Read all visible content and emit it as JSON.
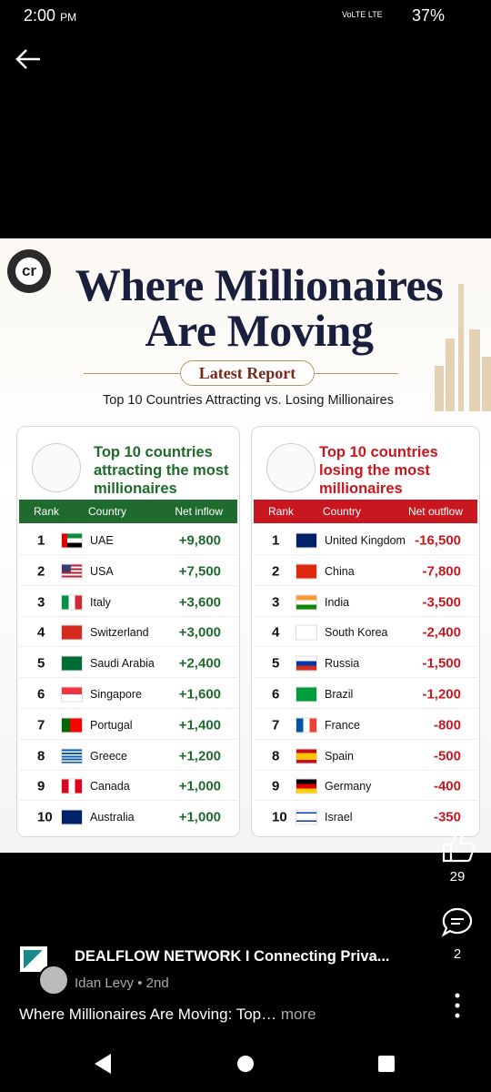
{
  "status_bar": {
    "time": "2:00",
    "period": "PM",
    "network": "VoLTE LTE",
    "battery": "37%"
  },
  "infographic": {
    "logo": "cr",
    "title": [
      "Where Millionaires",
      "Are Moving"
    ],
    "badge": "Latest Report",
    "subtitle": "Top 10 Countries Attracting vs. Losing Millionaires",
    "left_panel": {
      "heading": "Top 10 countries attracting the most millionaires",
      "columns": [
        "Rank",
        "Country",
        "Net inflow"
      ],
      "rows": [
        [
          "1",
          "UAE",
          "+9,800"
        ],
        [
          "2",
          "USA",
          "+7,500"
        ],
        [
          "3",
          "Italy",
          "+3,600"
        ],
        [
          "4",
          "Switzerland",
          "+3,000"
        ],
        [
          "5",
          "Saudi Arabia",
          "+2,400"
        ],
        [
          "6",
          "Singapore",
          "+1,600"
        ],
        [
          "7",
          "Portugal",
          "+1,400"
        ],
        [
          "8",
          "Greece",
          "+1,200"
        ],
        [
          "9",
          "Canada",
          "+1,000"
        ],
        [
          "10",
          "Australia",
          "+1,000"
        ]
      ]
    },
    "right_panel": {
      "heading": "Top 10 countries losing the most millionaires",
      "columns": [
        "Rank",
        "Country",
        "Net outflow"
      ],
      "rows": [
        [
          "1",
          "United Kingdom",
          "-16,500"
        ],
        [
          "2",
          "China",
          "-7,800"
        ],
        [
          "3",
          "India",
          "-3,500"
        ],
        [
          "4",
          "South Korea",
          "-2,400"
        ],
        [
          "5",
          "Russia",
          "-1,500"
        ],
        [
          "6",
          "Brazil",
          "-1,200"
        ],
        [
          "7",
          "France",
          "-800"
        ],
        [
          "8",
          "Spain",
          "-500"
        ],
        [
          "9",
          "Germany",
          "-400"
        ],
        [
          "10",
          "Israel",
          "-350"
        ]
      ]
    }
  },
  "post": {
    "likes": 29,
    "comments": 2,
    "author": "DEALFLOW NETWORK I Connecting Priva...",
    "byline": "Idan Levy • 2nd",
    "caption": "Where Millionaires Are Moving: Top…",
    "more": "more"
  }
}
